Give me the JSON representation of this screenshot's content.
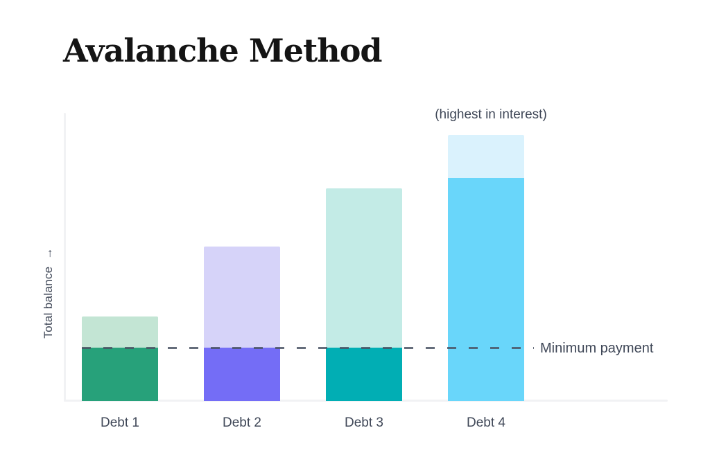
{
  "page": {
    "title": "Avalanche Method"
  },
  "chart_data": {
    "type": "bar",
    "stacked": true,
    "title": "Avalanche Method",
    "categories": [
      "Debt 1",
      "Debt 2",
      "Debt 3",
      "Debt 4"
    ],
    "y_axis_label": "Total balance",
    "y_axis_arrow": "→",
    "value_scale": "relative bar heights, no numeric axis ticks shown",
    "grid": "off",
    "legend": "none",
    "min_payment_line": {
      "label": "Minimum payment",
      "value": 77,
      "style": "dashed"
    },
    "annotation": {
      "text": "(highest in interest)",
      "target": "Debt 4"
    },
    "bars": [
      {
        "category": "Debt 1",
        "segments": [
          {
            "name": "minimum-payment",
            "value": 77,
            "color": "#27A17A"
          },
          {
            "name": "remaining-balance",
            "value": 45,
            "color": "#C3E5D4"
          }
        ]
      },
      {
        "category": "Debt 2",
        "segments": [
          {
            "name": "minimum-payment",
            "value": 77,
            "color": "#746DF6"
          },
          {
            "name": "remaining-balance",
            "value": 146,
            "color": "#D6D3F9"
          }
        ]
      },
      {
        "category": "Debt 3",
        "segments": [
          {
            "name": "minimum-payment",
            "value": 77,
            "color": "#01AEB4"
          },
          {
            "name": "remaining-balance",
            "value": 230,
            "color": "#C3EBE6"
          }
        ]
      },
      {
        "category": "Debt 4",
        "segments": [
          {
            "name": "payment-focus",
            "value": 322,
            "color": "#69D6FA"
          },
          {
            "name": "remaining-balance",
            "value": 62,
            "color": "#DAF2FD"
          }
        ]
      }
    ]
  },
  "colors": {
    "dashed_line": "#4A5364",
    "axis_line": "#F1F2F4",
    "text": "#3F4757",
    "title": "#141414",
    "background": "#FFFFFF"
  }
}
